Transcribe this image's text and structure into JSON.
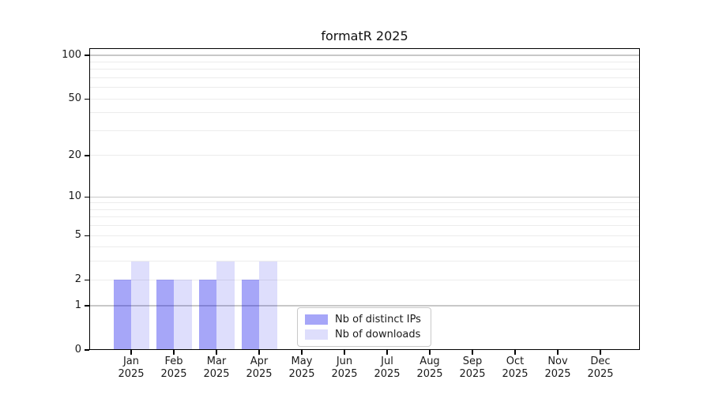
{
  "window": {
    "background": "#ffffff"
  },
  "chart_data": {
    "type": "bar",
    "title": "formatR 2025",
    "categories": [
      "Jan",
      "Feb",
      "Mar",
      "Apr",
      "May",
      "Jun",
      "Jul",
      "Aug",
      "Sep",
      "Oct",
      "Nov",
      "Dec"
    ],
    "category_sublabel": "2025",
    "series": [
      {
        "name": "Nb of distinct IPs",
        "color": "rgba(8,8,235,0.36)",
        "values": [
          2,
          2,
          2,
          2,
          0,
          0,
          0,
          0,
          0,
          0,
          0,
          0
        ]
      },
      {
        "name": "Nb of downloads",
        "color": "rgba(8,8,235,0.135)",
        "values": [
          3,
          2,
          3,
          3,
          0,
          0,
          0,
          0,
          0,
          0,
          0,
          0
        ]
      }
    ],
    "xlabel": "",
    "ylabel": "",
    "y_scale": "log1p",
    "ylim": [
      0,
      113
    ],
    "y_ticks": [
      0,
      1,
      2,
      5,
      10,
      20,
      50,
      100
    ],
    "y_gridlines_major": [
      1,
      10,
      100
    ],
    "y_gridlines_minor": [
      2,
      3,
      4,
      5,
      6,
      7,
      8,
      9,
      20,
      30,
      40,
      50,
      60,
      70,
      80,
      90
    ],
    "grid_color_major": "#c8c8c8",
    "grid_color_minor": "#ececec",
    "axis_color": "#000000",
    "text_color": "#1a1a1a",
    "legend": {
      "position": "inside-bottom-center"
    }
  }
}
